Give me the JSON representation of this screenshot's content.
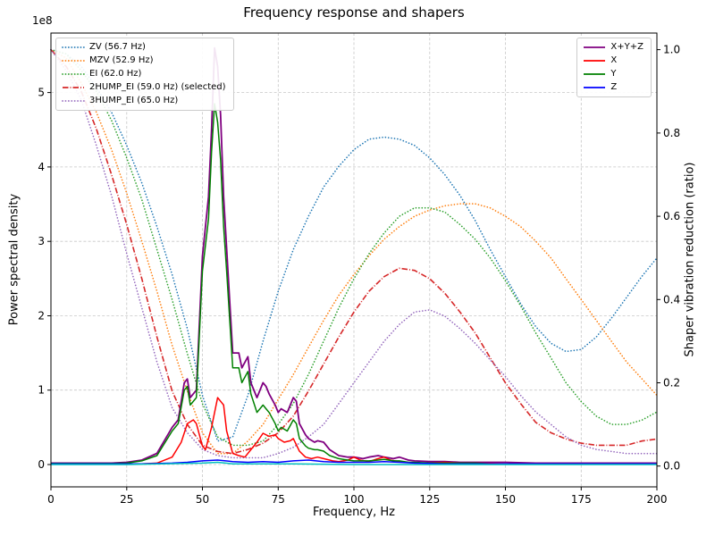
{
  "chart_data": {
    "type": "line",
    "title": "Frequency response and shapers",
    "xlabel": "Frequency, Hz",
    "ylabel_left": "Power spectral density",
    "ylabel_right": "Shaper vibration reduction (ratio)",
    "left_offset_text": "1e8",
    "xlim": [
      0,
      200
    ],
    "x_ticks": [
      0,
      25,
      50,
      75,
      100,
      125,
      150,
      175,
      200
    ],
    "ylim_left_1e8": [
      -0.3,
      5.8
    ],
    "y_ticks_left": [
      0,
      1,
      2,
      3,
      4,
      5
    ],
    "ylim_right": [
      -0.05,
      1.04
    ],
    "y_ticks_right": [
      0.0,
      0.2,
      0.4,
      0.6,
      0.8,
      1.0
    ],
    "grid": true,
    "legend_positions": {
      "shapers": "upper left",
      "responses": "upper right"
    },
    "x_shapers": [
      0,
      5,
      10,
      15,
      20,
      25,
      30,
      35,
      40,
      45,
      50,
      55,
      60,
      65,
      70,
      75,
      80,
      85,
      90,
      95,
      100,
      105,
      110,
      115,
      120,
      125,
      130,
      135,
      140,
      145,
      150,
      155,
      160,
      165,
      170,
      175,
      180,
      185,
      190,
      195,
      200
    ],
    "series": [
      {
        "name": "ZV",
        "label": "ZV (56.7 Hz)",
        "color": "#1f77b4",
        "style": "dotted",
        "axis": "right",
        "legend": "left",
        "y": [
          1.0,
          0.99,
          0.96,
          0.91,
          0.85,
          0.77,
          0.68,
          0.575,
          0.46,
          0.33,
          0.17,
          0.06,
          0.07,
          0.17,
          0.3,
          0.42,
          0.52,
          0.6,
          0.67,
          0.72,
          0.76,
          0.785,
          0.79,
          0.785,
          0.77,
          0.74,
          0.7,
          0.65,
          0.59,
          0.52,
          0.455,
          0.39,
          0.335,
          0.295,
          0.275,
          0.28,
          0.31,
          0.355,
          0.405,
          0.455,
          0.5
        ]
      },
      {
        "name": "MZV",
        "label": "MZV (52.9 Hz)",
        "color": "#ff7f0e",
        "style": "dotted",
        "axis": "right",
        "legend": "left",
        "y": [
          1.0,
          0.98,
          0.92,
          0.85,
          0.76,
          0.655,
          0.54,
          0.42,
          0.29,
          0.18,
          0.08,
          0.03,
          0.03,
          0.06,
          0.1,
          0.16,
          0.22,
          0.285,
          0.35,
          0.41,
          0.46,
          0.505,
          0.545,
          0.575,
          0.6,
          0.615,
          0.625,
          0.63,
          0.63,
          0.62,
          0.6,
          0.575,
          0.54,
          0.5,
          0.45,
          0.4,
          0.35,
          0.3,
          0.25,
          0.21,
          0.17
        ]
      },
      {
        "name": "EI",
        "label": "EI (62.0 Hz)",
        "color": "#2ca02c",
        "style": "dotted",
        "axis": "right",
        "legend": "left",
        "y": [
          1.0,
          0.99,
          0.95,
          0.9,
          0.83,
          0.74,
          0.64,
          0.52,
          0.4,
          0.27,
          0.15,
          0.07,
          0.05,
          0.05,
          0.06,
          0.1,
          0.15,
          0.22,
          0.3,
          0.38,
          0.45,
          0.51,
          0.56,
          0.6,
          0.62,
          0.62,
          0.61,
          0.58,
          0.545,
          0.5,
          0.445,
          0.385,
          0.32,
          0.26,
          0.2,
          0.155,
          0.12,
          0.1,
          0.1,
          0.11,
          0.13
        ]
      },
      {
        "name": "2HUMP_EI",
        "label": "2HUMP_EI (59.0 Hz) (selected)",
        "color": "#d62728",
        "style": "dashdot",
        "axis": "right",
        "legend": "left",
        "y": [
          1.0,
          0.96,
          0.9,
          0.81,
          0.7,
          0.58,
          0.45,
          0.31,
          0.18,
          0.1,
          0.05,
          0.035,
          0.03,
          0.04,
          0.055,
          0.08,
          0.12,
          0.18,
          0.245,
          0.31,
          0.37,
          0.42,
          0.455,
          0.475,
          0.47,
          0.45,
          0.415,
          0.37,
          0.32,
          0.26,
          0.2,
          0.15,
          0.105,
          0.08,
          0.065,
          0.055,
          0.05,
          0.05,
          0.05,
          0.06,
          0.065
        ]
      },
      {
        "name": "3HUMP_EI",
        "label": "3HUMP_EI (65.0 Hz)",
        "color": "#9467bd",
        "style": "dotted",
        "axis": "right",
        "legend": "left",
        "y": [
          1.0,
          0.95,
          0.88,
          0.77,
          0.65,
          0.51,
          0.38,
          0.25,
          0.14,
          0.08,
          0.04,
          0.025,
          0.02,
          0.02,
          0.02,
          0.03,
          0.045,
          0.07,
          0.1,
          0.15,
          0.2,
          0.25,
          0.3,
          0.34,
          0.37,
          0.375,
          0.36,
          0.33,
          0.295,
          0.255,
          0.215,
          0.17,
          0.13,
          0.1,
          0.07,
          0.05,
          0.04,
          0.035,
          0.03,
          0.03,
          0.03
        ]
      },
      {
        "name": "X+Y+Z",
        "label": "X+Y+Z",
        "color": "#800080",
        "style": "solid",
        "axis": "left",
        "legend": "right",
        "x": [
          0,
          5,
          10,
          15,
          20,
          25,
          30,
          35,
          40,
          42,
          44,
          45,
          46,
          48,
          50,
          52,
          53,
          54,
          55,
          56,
          57,
          58,
          60,
          62,
          63,
          65,
          66,
          68,
          70,
          71,
          72,
          74,
          75,
          76,
          78,
          80,
          81,
          82,
          84,
          85,
          87,
          88,
          90,
          92,
          95,
          98,
          100,
          103,
          105,
          108,
          110,
          113,
          115,
          118,
          120,
          125,
          130,
          135,
          140,
          145,
          150,
          160,
          170,
          180,
          190,
          200
        ],
        "y": [
          0.02,
          0.02,
          0.02,
          0.02,
          0.02,
          0.03,
          0.06,
          0.15,
          0.5,
          0.6,
          1.1,
          1.15,
          0.9,
          1.0,
          2.8,
          3.6,
          4.5,
          5.6,
          5.35,
          4.7,
          3.6,
          2.9,
          1.5,
          1.5,
          1.3,
          1.45,
          1.1,
          0.9,
          1.1,
          1.05,
          0.95,
          0.8,
          0.7,
          0.75,
          0.7,
          0.9,
          0.85,
          0.55,
          0.4,
          0.35,
          0.3,
          0.32,
          0.3,
          0.2,
          0.12,
          0.1,
          0.1,
          0.08,
          0.1,
          0.12,
          0.1,
          0.08,
          0.1,
          0.06,
          0.05,
          0.04,
          0.04,
          0.03,
          0.03,
          0.03,
          0.03,
          0.02,
          0.02,
          0.02,
          0.02,
          0.02
        ]
      },
      {
        "name": "X",
        "label": "X",
        "color": "#ff0000",
        "style": "solid",
        "axis": "left",
        "legend": "right",
        "x": [
          0,
          10,
          20,
          30,
          35,
          40,
          43,
          45,
          47,
          48,
          50,
          51,
          53,
          55,
          56,
          57,
          58,
          60,
          62,
          64,
          66,
          68,
          70,
          72,
          74,
          75,
          77,
          79,
          80,
          82,
          84,
          86,
          88,
          90,
          93,
          95,
          98,
          100,
          102,
          105,
          108,
          110,
          112,
          115,
          118,
          120,
          125,
          130,
          135,
          140,
          150,
          160,
          170,
          180,
          190,
          200
        ],
        "y": [
          0.01,
          0.01,
          0.01,
          0.01,
          0.02,
          0.1,
          0.3,
          0.55,
          0.6,
          0.55,
          0.25,
          0.2,
          0.5,
          0.9,
          0.85,
          0.8,
          0.45,
          0.15,
          0.12,
          0.1,
          0.2,
          0.3,
          0.42,
          0.38,
          0.4,
          0.35,
          0.3,
          0.32,
          0.35,
          0.18,
          0.1,
          0.08,
          0.1,
          0.08,
          0.05,
          0.04,
          0.06,
          0.1,
          0.06,
          0.04,
          0.08,
          0.1,
          0.06,
          0.04,
          0.03,
          0.02,
          0.02,
          0.03,
          0.02,
          0.02,
          0.01,
          0.01,
          0.01,
          0.01,
          0.01,
          0.01
        ]
      },
      {
        "name": "Y",
        "label": "Y",
        "color": "#008000",
        "style": "solid",
        "axis": "left",
        "legend": "right",
        "x": [
          0,
          5,
          10,
          15,
          20,
          25,
          30,
          35,
          40,
          42,
          44,
          45,
          46,
          48,
          50,
          52,
          53,
          54,
          55,
          56,
          57,
          58,
          60,
          62,
          63,
          65,
          66,
          68,
          70,
          71,
          72,
          74,
          75,
          76,
          78,
          80,
          81,
          82,
          84,
          85,
          87,
          88,
          90,
          92,
          95,
          98,
          100,
          103,
          105,
          108,
          110,
          113,
          115,
          118,
          120,
          125,
          130,
          135,
          140,
          145,
          150,
          160,
          170,
          180,
          190,
          200
        ],
        "y": [
          0.015,
          0.015,
          0.015,
          0.015,
          0.015,
          0.02,
          0.05,
          0.12,
          0.45,
          0.55,
          1.0,
          1.05,
          0.8,
          0.9,
          2.6,
          3.3,
          4.2,
          4.85,
          4.6,
          4.1,
          3.2,
          2.6,
          1.3,
          1.3,
          1.1,
          1.25,
          0.95,
          0.7,
          0.8,
          0.75,
          0.7,
          0.55,
          0.45,
          0.5,
          0.45,
          0.6,
          0.55,
          0.35,
          0.25,
          0.22,
          0.2,
          0.2,
          0.18,
          0.12,
          0.08,
          0.06,
          0.05,
          0.05,
          0.05,
          0.06,
          0.07,
          0.05,
          0.05,
          0.03,
          0.03,
          0.02,
          0.02,
          0.02,
          0.02,
          0.01,
          0.01,
          0.01,
          0.01,
          0.01,
          0.01,
          0.01
        ]
      },
      {
        "name": "Z",
        "label": "Z",
        "color": "#0000ff",
        "style": "solid",
        "axis": "left",
        "legend": "right",
        "x": [
          0,
          10,
          20,
          30,
          40,
          45,
          50,
          55,
          60,
          65,
          70,
          75,
          80,
          85,
          90,
          95,
          100,
          105,
          110,
          115,
          120,
          130,
          140,
          150,
          160,
          170,
          180,
          190,
          200
        ],
        "y": [
          0.01,
          0.01,
          0.01,
          0.01,
          0.02,
          0.03,
          0.05,
          0.06,
          0.04,
          0.03,
          0.04,
          0.03,
          0.05,
          0.06,
          0.04,
          0.03,
          0.03,
          0.03,
          0.04,
          0.03,
          0.02,
          0.01,
          0.01,
          0.01,
          0.01,
          0.01,
          0.01,
          0.01,
          0.01
        ]
      },
      {
        "name": "baseline",
        "label": "",
        "color": "#00bfbf",
        "style": "solid",
        "axis": "left",
        "legend": "none",
        "x": [
          0,
          25,
          50,
          55,
          60,
          80,
          100,
          150,
          200
        ],
        "y": [
          0.0,
          0.0,
          0.02,
          0.03,
          0.01,
          0.01,
          0.0,
          0.0,
          0.0
        ]
      }
    ]
  }
}
